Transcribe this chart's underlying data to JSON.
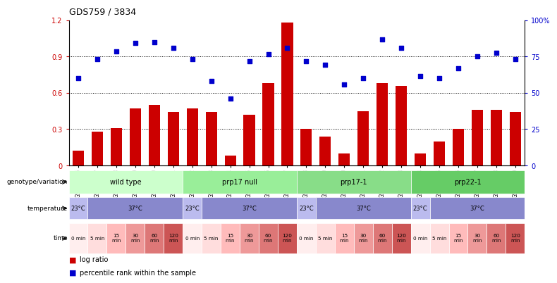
{
  "title": "GDS759 / 3834",
  "samples": [
    "GSM30876",
    "GSM30877",
    "GSM30878",
    "GSM30879",
    "GSM30880",
    "GSM30881",
    "GSM30882",
    "GSM30883",
    "GSM30884",
    "GSM30885",
    "GSM30886",
    "GSM30887",
    "GSM30888",
    "GSM30889",
    "GSM30890",
    "GSM30891",
    "GSM30892",
    "GSM30893",
    "GSM30894",
    "GSM30895",
    "GSM30896",
    "GSM30897",
    "GSM30898",
    "GSM30899"
  ],
  "log_ratio": [
    0.12,
    0.28,
    0.31,
    0.47,
    0.5,
    0.44,
    0.47,
    0.44,
    0.08,
    0.42,
    0.68,
    1.18,
    0.3,
    0.24,
    0.1,
    0.45,
    0.68,
    0.66,
    0.1,
    0.2,
    0.3,
    0.46,
    0.46,
    0.44
  ],
  "percentile": [
    0.72,
    0.88,
    0.94,
    1.01,
    1.02,
    0.97,
    0.88,
    0.7,
    0.55,
    0.86,
    0.92,
    0.97,
    0.86,
    0.83,
    0.67,
    0.72,
    1.04,
    0.97,
    0.74,
    0.72,
    0.8,
    0.9,
    0.93,
    0.88
  ],
  "bar_color": "#cc0000",
  "dot_color": "#0000cc",
  "ylim_left": [
    0,
    1.2
  ],
  "yticks_left": [
    0,
    0.3,
    0.6,
    0.9,
    1.2
  ],
  "yticklabels_left": [
    "0",
    "0.3",
    "0.6",
    "0.9",
    "1.2"
  ],
  "yticklabels_right": [
    "0",
    "25",
    "50",
    "75",
    "100%"
  ],
  "grid_lines": [
    0.3,
    0.6,
    0.9
  ],
  "genotype_groups": [
    {
      "label": "wild type",
      "start": 0,
      "end": 6,
      "color": "#ccffcc"
    },
    {
      "label": "prp17 null",
      "start": 6,
      "end": 12,
      "color": "#99ee99"
    },
    {
      "label": "prp17-1",
      "start": 12,
      "end": 18,
      "color": "#88dd88"
    },
    {
      "label": "prp22-1",
      "start": 18,
      "end": 24,
      "color": "#66cc66"
    }
  ],
  "temperature_segments": [
    {
      "label": "23°C",
      "start": 0,
      "end": 1,
      "color": "#bbbbee"
    },
    {
      "label": "37°C",
      "start": 1,
      "end": 6,
      "color": "#8888cc"
    },
    {
      "label": "23°C",
      "start": 6,
      "end": 7,
      "color": "#bbbbee"
    },
    {
      "label": "37°C",
      "start": 7,
      "end": 12,
      "color": "#8888cc"
    },
    {
      "label": "23°C",
      "start": 12,
      "end": 13,
      "color": "#bbbbee"
    },
    {
      "label": "37°C",
      "start": 13,
      "end": 18,
      "color": "#8888cc"
    },
    {
      "label": "23°C",
      "start": 18,
      "end": 19,
      "color": "#bbbbee"
    },
    {
      "label": "37°C",
      "start": 19,
      "end": 24,
      "color": "#8888cc"
    }
  ],
  "time_segments": [
    {
      "label": "0 min",
      "start": 0,
      "end": 1,
      "color": "#ffeeee"
    },
    {
      "label": "5 min",
      "start": 1,
      "end": 2,
      "color": "#ffdddd"
    },
    {
      "label": "15\nmin",
      "start": 2,
      "end": 3,
      "color": "#ffbbbb"
    },
    {
      "label": "30\nmin",
      "start": 3,
      "end": 4,
      "color": "#ee9999"
    },
    {
      "label": "60\nmin",
      "start": 4,
      "end": 5,
      "color": "#dd7777"
    },
    {
      "label": "120\nmin",
      "start": 5,
      "end": 6,
      "color": "#cc5555"
    },
    {
      "label": "0 min",
      "start": 6,
      "end": 7,
      "color": "#ffeeee"
    },
    {
      "label": "5 min",
      "start": 7,
      "end": 8,
      "color": "#ffdddd"
    },
    {
      "label": "15\nmin",
      "start": 8,
      "end": 9,
      "color": "#ffbbbb"
    },
    {
      "label": "30\nmin",
      "start": 9,
      "end": 10,
      "color": "#ee9999"
    },
    {
      "label": "60\nmin",
      "start": 10,
      "end": 11,
      "color": "#dd7777"
    },
    {
      "label": "120\nmin",
      "start": 11,
      "end": 12,
      "color": "#cc5555"
    },
    {
      "label": "0 min",
      "start": 12,
      "end": 13,
      "color": "#ffeeee"
    },
    {
      "label": "5 min",
      "start": 13,
      "end": 14,
      "color": "#ffdddd"
    },
    {
      "label": "15\nmin",
      "start": 14,
      "end": 15,
      "color": "#ffbbbb"
    },
    {
      "label": "30\nmin",
      "start": 15,
      "end": 16,
      "color": "#ee9999"
    },
    {
      "label": "60\nmin",
      "start": 16,
      "end": 17,
      "color": "#dd7777"
    },
    {
      "label": "120\nmin",
      "start": 17,
      "end": 18,
      "color": "#cc5555"
    },
    {
      "label": "0 min",
      "start": 18,
      "end": 19,
      "color": "#ffeeee"
    },
    {
      "label": "5 min",
      "start": 19,
      "end": 20,
      "color": "#ffdddd"
    },
    {
      "label": "15\nmin",
      "start": 20,
      "end": 21,
      "color": "#ffbbbb"
    },
    {
      "label": "30\nmin",
      "start": 21,
      "end": 22,
      "color": "#ee9999"
    },
    {
      "label": "60\nmin",
      "start": 22,
      "end": 23,
      "color": "#dd7777"
    },
    {
      "label": "120\nmin",
      "start": 23,
      "end": 24,
      "color": "#cc5555"
    }
  ],
  "legend_labels": [
    "log ratio",
    "percentile rank within the sample"
  ],
  "legend_colors": [
    "#cc0000",
    "#0000cc"
  ],
  "row_labels": [
    "genotype/variation",
    "temperature",
    "time"
  ],
  "background_color": "#ffffff"
}
